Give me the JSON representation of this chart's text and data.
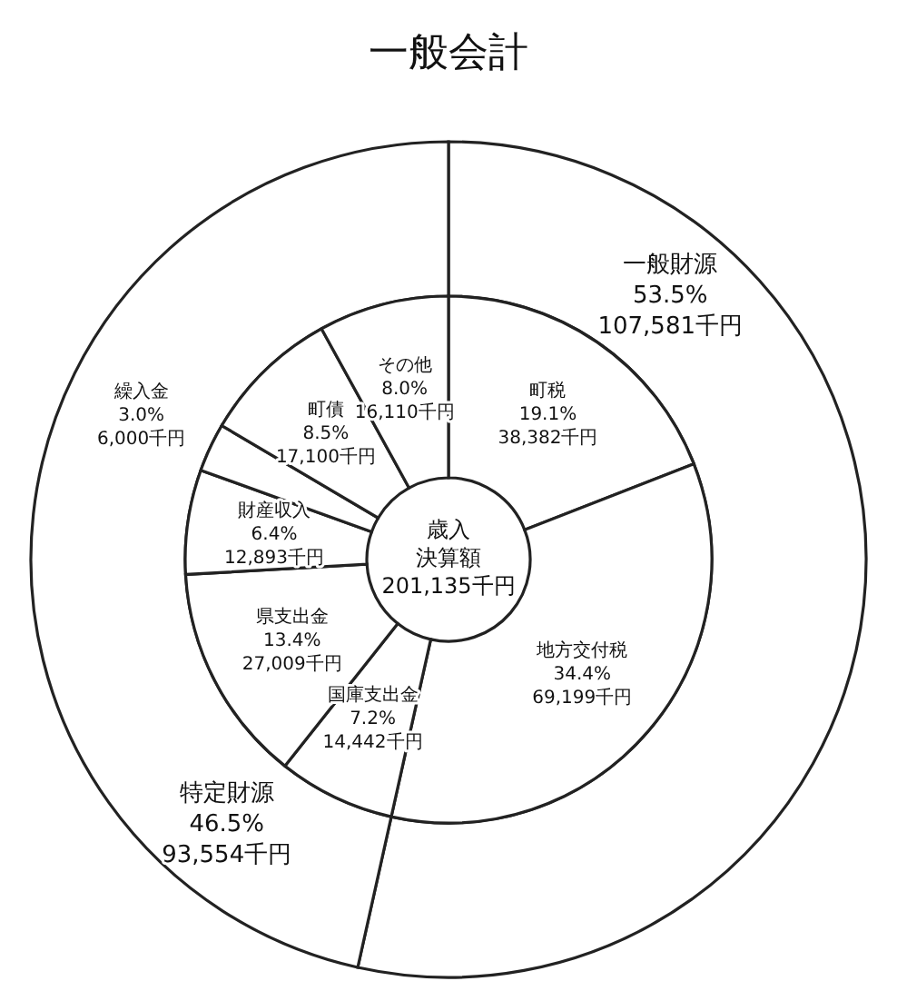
{
  "chart_data": [
    {
      "type": "donut",
      "title": "一般会計",
      "categories": [
        "一般財源",
        "特定財源"
      ],
      "values": [
        107581,
        93554
      ],
      "colors": [
        "#ffffff",
        "#ffffff"
      ],
      "value_labels": [
        "53.5%\n107,581千円",
        "46.5%\n93,554千円"
      ]
    },
    {
      "type": "donut",
      "categories": [
        "町税",
        "地方交付税",
        "国庫支出金",
        "県支出金",
        "財産収入",
        "繰入金",
        "町債",
        "その他"
      ],
      "values": [
        38382,
        69199,
        14442,
        27009,
        12893,
        6000,
        17100,
        16110
      ],
      "colors": [
        "#ffffff",
        "#ffffff",
        "#ffffff",
        "#ffffff",
        "#ffffff",
        "#ffffff",
        "#ffffff",
        "#ffffff"
      ],
      "value_labels": [
        "19.1%\n38,382千円",
        "34.4%\n69,199千円",
        "7.2%\n14,442千円",
        "13.4%\n27,009千円",
        "6.4%\n12,893千円",
        "3.0%\n6,000千円",
        "8.5%\n17,100千円",
        "8.0%\n16,110千円"
      ],
      "annotations": [
        "歳入",
        "決算額",
        "201,135千円"
      ]
    }
  ]
}
